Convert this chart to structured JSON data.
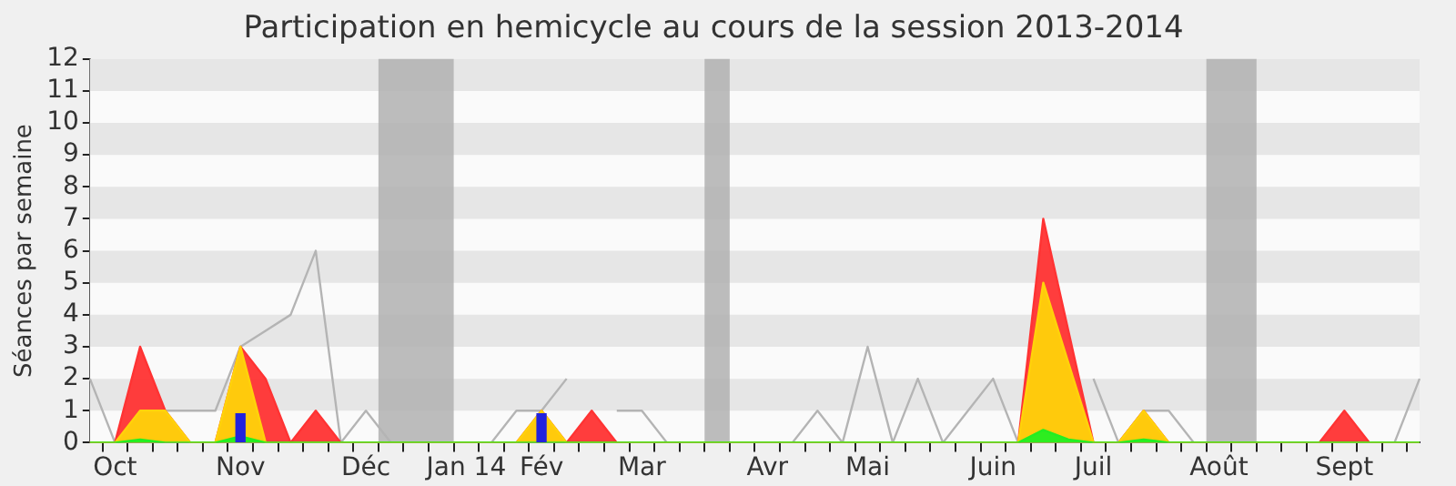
{
  "chart_data": {
    "type": "area",
    "title": "Participation en hemicycle au cours de la session 2013-2014",
    "ylabel": "Séances par semaine",
    "categories": [
      null,
      "Oct",
      null,
      null,
      null,
      null,
      "Nov",
      null,
      null,
      null,
      null,
      "Déc",
      null,
      null,
      null,
      "Jan 14",
      null,
      null,
      "Fév",
      null,
      null,
      null,
      "Mar",
      null,
      null,
      null,
      null,
      "Avr",
      null,
      null,
      null,
      "Mai",
      null,
      null,
      null,
      null,
      "Juin",
      null,
      null,
      null,
      "Juil",
      null,
      null,
      null,
      null,
      "Août",
      null,
      null,
      null,
      null,
      "Sept",
      null,
      null,
      null
    ],
    "ylim": [
      0,
      12
    ],
    "yticks": [
      0,
      1,
      2,
      3,
      4,
      5,
      6,
      7,
      8,
      9,
      10,
      11,
      12
    ],
    "legend": false,
    "series": [
      {
        "type": "line",
        "color": "#b4b4b4",
        "values": [
          2,
          0,
          null,
          1,
          1,
          1,
          3,
          3.5,
          4,
          6,
          0,
          1,
          0,
          0,
          0,
          0,
          0,
          1,
          1,
          2,
          null,
          1,
          1,
          0,
          0,
          0,
          0,
          0,
          0,
          1,
          0,
          3,
          0,
          2,
          0,
          1,
          2,
          0,
          null,
          null,
          2,
          0,
          1,
          1,
          0,
          0,
          0,
          0,
          0,
          0,
          null,
          0,
          0,
          2
        ]
      },
      {
        "color": "#ff3333",
        "values": [
          0,
          0,
          3,
          1,
          0,
          0,
          3,
          2,
          0,
          1,
          0,
          0,
          0,
          0,
          0,
          0,
          0,
          0,
          1,
          0,
          1,
          0,
          0,
          0,
          0,
          0,
          0,
          0,
          0,
          0,
          0,
          0,
          0,
          0,
          0,
          0,
          0,
          0,
          7,
          3.5,
          0,
          0,
          1,
          0,
          0,
          0,
          0,
          0,
          0,
          0,
          1,
          0,
          0,
          0
        ]
      },
      {
        "color": "#ffd20a",
        "values": [
          0,
          0,
          1,
          1,
          0,
          0,
          3,
          0,
          0,
          0,
          0,
          0,
          0,
          0,
          0,
          0,
          0,
          0,
          1,
          0,
          0,
          0,
          0,
          0,
          0,
          0,
          0,
          0,
          0,
          0,
          0,
          0,
          0,
          0,
          0,
          0,
          0,
          0,
          5,
          2.5,
          0,
          0,
          1,
          0,
          0,
          0,
          0,
          0,
          0,
          0,
          0,
          0,
          0,
          0
        ]
      },
      {
        "color": "#22ee22",
        "values": [
          0,
          0,
          0.1,
          0,
          0,
          0,
          0.2,
          0,
          0,
          0,
          0,
          0,
          0,
          0,
          0,
          0,
          0,
          0,
          0,
          0,
          0,
          0,
          0,
          0,
          0,
          0,
          0,
          0,
          0,
          0,
          0,
          0,
          0,
          0,
          0,
          0,
          0,
          0,
          0.4,
          0.1,
          0,
          0,
          0.1,
          0,
          0,
          0,
          0,
          0,
          0,
          0,
          0,
          0,
          0,
          0
        ]
      },
      {
        "type": "bar",
        "color": "#2222dd",
        "values": [
          null,
          null,
          null,
          null,
          null,
          null,
          0.9,
          null,
          null,
          null,
          null,
          null,
          null,
          null,
          null,
          null,
          null,
          null,
          0.9,
          null,
          null,
          null,
          null,
          null,
          null,
          null,
          null,
          null,
          null,
          null,
          null,
          null,
          null,
          null,
          null,
          null,
          null,
          null,
          null,
          null,
          null,
          null,
          null,
          null,
          null,
          null,
          null,
          null,
          null,
          null,
          null,
          null,
          null,
          null
        ]
      }
    ]
  }
}
